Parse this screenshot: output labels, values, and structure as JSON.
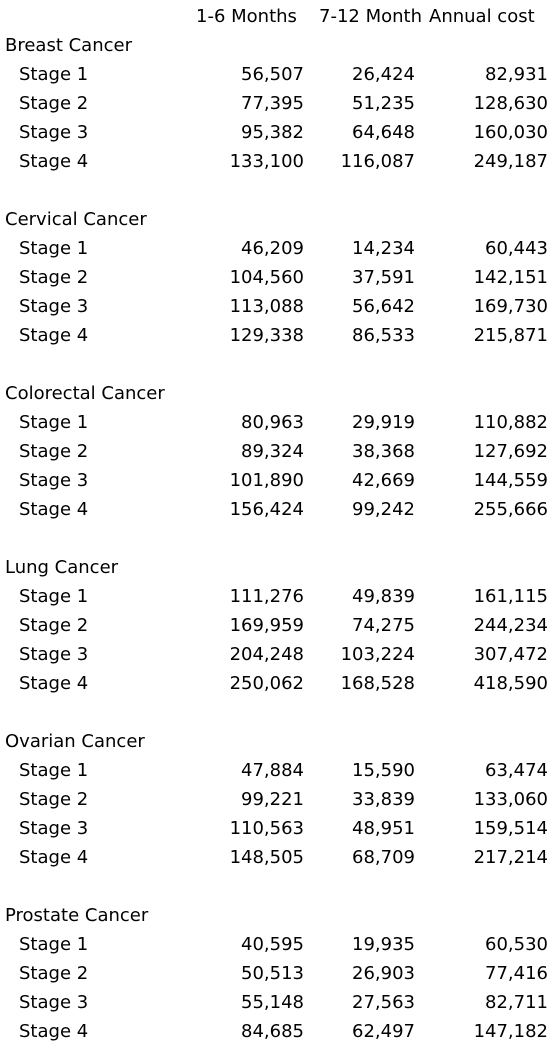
{
  "headers": {
    "col1": "1-6 Months",
    "col2": "7-12 Month",
    "col3": "Annual cost"
  },
  "groups": [
    {
      "title": "Breast Cancer",
      "rows": [
        {
          "label": "Stage 1",
          "m1_6": "56,507",
          "m7_12": "26,424",
          "annual": "82,931"
        },
        {
          "label": "Stage 2",
          "m1_6": "77,395",
          "m7_12": "51,235",
          "annual": "128,630"
        },
        {
          "label": "Stage 3",
          "m1_6": "95,382",
          "m7_12": "64,648",
          "annual": "160,030"
        },
        {
          "label": "Stage 4",
          "m1_6": "133,100",
          "m7_12": "116,087",
          "annual": "249,187"
        }
      ]
    },
    {
      "title": "Cervical Cancer",
      "rows": [
        {
          "label": "Stage 1",
          "m1_6": "46,209",
          "m7_12": "14,234",
          "annual": "60,443"
        },
        {
          "label": "Stage 2",
          "m1_6": "104,560",
          "m7_12": "37,591",
          "annual": "142,151"
        },
        {
          "label": "Stage 3",
          "m1_6": "113,088",
          "m7_12": "56,642",
          "annual": "169,730"
        },
        {
          "label": "Stage 4",
          "m1_6": "129,338",
          "m7_12": "86,533",
          "annual": "215,871"
        }
      ]
    },
    {
      "title": "Colorectal Cancer",
      "rows": [
        {
          "label": "Stage 1",
          "m1_6": "80,963",
          "m7_12": "29,919",
          "annual": "110,882"
        },
        {
          "label": "Stage 2",
          "m1_6": "89,324",
          "m7_12": "38,368",
          "annual": "127,692"
        },
        {
          "label": "Stage 3",
          "m1_6": "101,890",
          "m7_12": "42,669",
          "annual": "144,559"
        },
        {
          "label": "Stage 4",
          "m1_6": "156,424",
          "m7_12": "99,242",
          "annual": "255,666"
        }
      ]
    },
    {
      "title": "Lung Cancer",
      "rows": [
        {
          "label": "Stage 1",
          "m1_6": "111,276",
          "m7_12": "49,839",
          "annual": "161,115"
        },
        {
          "label": "Stage 2",
          "m1_6": "169,959",
          "m7_12": "74,275",
          "annual": "244,234"
        },
        {
          "label": "Stage 3",
          "m1_6": "204,248",
          "m7_12": "103,224",
          "annual": "307,472"
        },
        {
          "label": "Stage 4",
          "m1_6": "250,062",
          "m7_12": "168,528",
          "annual": "418,590"
        }
      ]
    },
    {
      "title": "Ovarian Cancer",
      "rows": [
        {
          "label": "Stage 1",
          "m1_6": "47,884",
          "m7_12": "15,590",
          "annual": "63,474"
        },
        {
          "label": "Stage 2",
          "m1_6": "99,221",
          "m7_12": "33,839",
          "annual": "133,060"
        },
        {
          "label": "Stage 3",
          "m1_6": "110,563",
          "m7_12": "48,951",
          "annual": "159,514"
        },
        {
          "label": "Stage 4",
          "m1_6": "148,505",
          "m7_12": "68,709",
          "annual": "217,214"
        }
      ]
    },
    {
      "title": "Prostate Cancer",
      "rows": [
        {
          "label": "Stage 1",
          "m1_6": "40,595",
          "m7_12": "19,935",
          "annual": "60,530"
        },
        {
          "label": "Stage 2",
          "m1_6": "50,513",
          "m7_12": "26,903",
          "annual": "77,416"
        },
        {
          "label": "Stage 3",
          "m1_6": "55,148",
          "m7_12": "27,563",
          "annual": "82,711"
        },
        {
          "label": "Stage 4",
          "m1_6": "84,685",
          "m7_12": "62,497",
          "annual": "147,182"
        }
      ]
    }
  ]
}
